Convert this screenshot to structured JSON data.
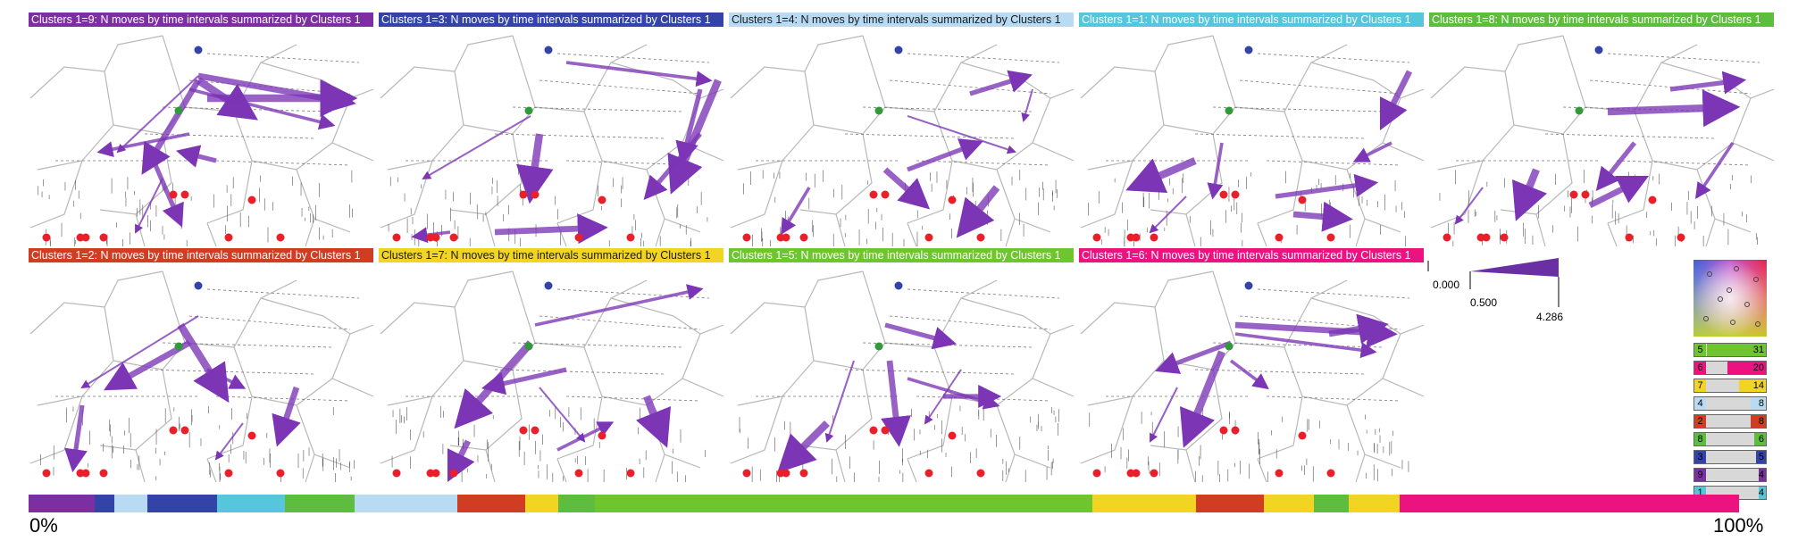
{
  "panels": [
    {
      "title": "Clusters 1=9: N moves by time intervals summarized by Clusters 1",
      "color": "#7b2fa0",
      "text_color": "#ffffff"
    },
    {
      "title": "Clusters 1=3: N moves by time intervals summarized by Clusters 1",
      "color": "#3343a8",
      "text_color": "#ffffff"
    },
    {
      "title": "Clusters 1=4: N moves by time intervals summarized by Clusters 1",
      "color": "#b8daf2",
      "text_color": "#1a1a1a"
    },
    {
      "title": "Clusters 1=1: N moves by time intervals summarized by Clusters 1",
      "color": "#56c6dc",
      "text_color": "#ffffff"
    },
    {
      "title": "Clusters 1=8: N moves by time intervals summarized by Clusters 1",
      "color": "#5ebd3e",
      "text_color": "#ffffff"
    },
    {
      "title": "Clusters 1=2: N moves by time intervals summarized by Clusters 1",
      "color": "#d03d22",
      "text_color": "#ffffff"
    },
    {
      "title": "Clusters 1=7: N moves by time intervals summarized by Clusters 1",
      "color": "#f2d422",
      "text_color": "#1a1a1a"
    },
    {
      "title": "Clusters 1=5: N moves by time intervals summarized by Clusters 1",
      "color": "#6fc52e",
      "text_color": "#ffffff"
    },
    {
      "title": "Clusters 1=6: N moves by time intervals summarized by Clusters 1",
      "color": "#ec1380",
      "text_color": "#ffffff"
    }
  ],
  "legend": {
    "min_label": "0.000",
    "mid_label": "0.500",
    "max_label": "4.286",
    "color": "#6a2fa3"
  },
  "counts": [
    {
      "id": "5",
      "value": "31",
      "fraction": 1.0,
      "color": "#6fc52e"
    },
    {
      "id": "6",
      "value": "20",
      "fraction": 0.645,
      "color": "#ec1380"
    },
    {
      "id": "7",
      "value": "14",
      "fraction": 0.452,
      "color": "#f2d422"
    },
    {
      "id": "4",
      "value": "8",
      "fraction": 0.258,
      "color": "#b8daf2"
    },
    {
      "id": "2",
      "value": "8",
      "fraction": 0.258,
      "color": "#d03d22"
    },
    {
      "id": "8",
      "value": "6",
      "fraction": 0.194,
      "color": "#5ebd3e"
    },
    {
      "id": "3",
      "value": "5",
      "fraction": 0.161,
      "color": "#3343a8"
    },
    {
      "id": "9",
      "value": "4",
      "fraction": 0.129,
      "color": "#7b2fa0"
    },
    {
      "id": "1",
      "value": "4",
      "fraction": 0.129,
      "color": "#56c6dc"
    }
  ],
  "timeline": [
    {
      "color": "#7b2fa0",
      "fraction": 0.038
    },
    {
      "color": "#3343a8",
      "fraction": 0.011
    },
    {
      "color": "#b8daf2",
      "fraction": 0.019
    },
    {
      "color": "#3343a8",
      "fraction": 0.04
    },
    {
      "color": "#56c6dc",
      "fraction": 0.039
    },
    {
      "color": "#5ebd3e",
      "fraction": 0.04
    },
    {
      "color": "#b8daf2",
      "fraction": 0.059
    },
    {
      "color": "#d03d22",
      "fraction": 0.039
    },
    {
      "color": "#f2d422",
      "fraction": 0.019
    },
    {
      "color": "#5ebd3e",
      "fraction": 0.021
    },
    {
      "color": "#6fc52e",
      "fraction": 0.286
    },
    {
      "color": "#f2d422",
      "fraction": 0.059
    },
    {
      "color": "#d03d22",
      "fraction": 0.039
    },
    {
      "color": "#f2d422",
      "fraction": 0.029
    },
    {
      "color": "#5ebd3e",
      "fraction": 0.02
    },
    {
      "color": "#f2d422",
      "fraction": 0.029
    },
    {
      "color": "#ec1380",
      "fraction": 0.195
    }
  ],
  "timeline_start_label": "0%",
  "timeline_end_label": "100%",
  "node_colors": {
    "blue": "#3343a8",
    "green": "#2f9a3a",
    "red": "#e8202a",
    "arrow": "#7b35b5"
  }
}
